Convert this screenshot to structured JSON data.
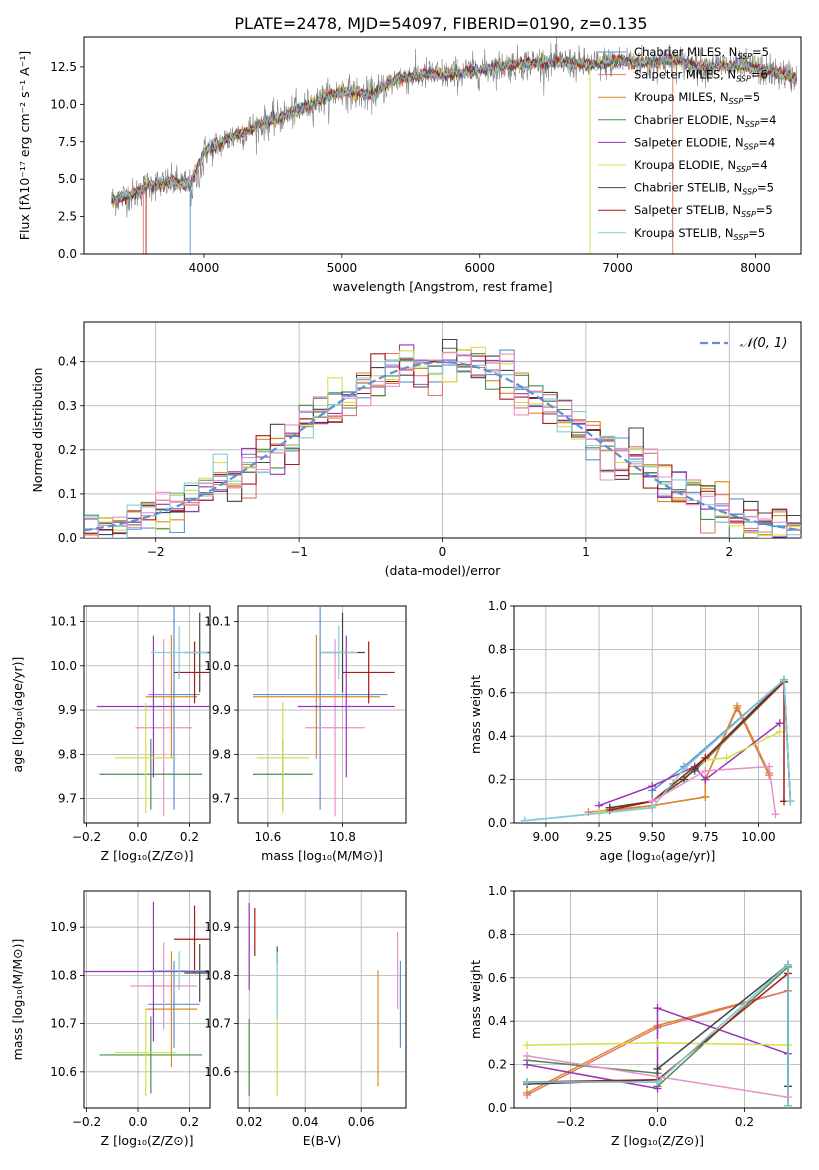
{
  "figure": {
    "title": "PLATE=2478, MJD=54097, FIBERID=0190, z=0.135"
  },
  "chart_data": [
    {
      "id": "spectrum",
      "type": "line",
      "xlabel": "wavelength [Angstrom, rest frame]",
      "ylabel": "Flux [fλ10⁻¹⁷ erg cm⁻² s⁻¹ A⁻¹]",
      "xlim": [
        3130,
        8330
      ],
      "ylim": [
        0,
        14.5
      ],
      "xticks": [
        4000,
        5000,
        6000,
        7000,
        8000
      ],
      "yticks": [
        0.0,
        2.5,
        5.0,
        7.5,
        10.0,
        12.5
      ],
      "grid": false,
      "legend_position": "upper-right",
      "x_range_data": [
        3330,
        8300
      ],
      "observed_color": "#808080",
      "observed_profile": {
        "x": [
          3330,
          3500,
          3600,
          3800,
          3900,
          4000,
          4200,
          4400,
          4600,
          4800,
          5000,
          5200,
          5400,
          5600,
          5800,
          6000,
          6200,
          6400,
          6600,
          6800,
          7000,
          7200,
          7400,
          7600,
          7800,
          8000,
          8200,
          8300
        ],
        "y": [
          3.6,
          4.0,
          4.6,
          4.8,
          4.6,
          6.8,
          7.8,
          8.6,
          9.3,
          10.1,
          10.9,
          10.6,
          11.7,
          12.0,
          12.0,
          12.3,
          12.6,
          12.8,
          12.8,
          12.6,
          12.9,
          12.8,
          13.0,
          12.5,
          12.6,
          12.4,
          12.0,
          11.8
        ]
      },
      "series": [
        {
          "name": "Chabrier MILES, N<sub>SSP</sub>=5",
          "color": "#5b8fd6"
        },
        {
          "name": "Salpeter MILES, N<sub>SSP</sub>=6",
          "color": "#e0776a"
        },
        {
          "name": "Kroupa MILES, N<sub>SSP</sub>=5",
          "color": "#d98b2b"
        },
        {
          "name": "Chabrier ELODIE, N<sub>SSP</sub>=4",
          "color": "#4e8a4e"
        },
        {
          "name": "Salpeter ELODIE, N<sub>SSP</sub>=4",
          "color": "#9a35b8"
        },
        {
          "name": "Kroupa ELODIE, N<sub>SSP</sub>=4",
          "color": "#d4e04a"
        },
        {
          "name": "Chabrier STELIB, N<sub>SSP</sub>=5",
          "color": "#444444"
        },
        {
          "name": "Salpeter STELIB, N<sub>SSP</sub>=5",
          "color": "#a51c1c"
        },
        {
          "name": "Kroupa STELIB, N<sub>SSP</sub>=5",
          "color": "#7fcfd8"
        }
      ]
    },
    {
      "id": "residuals",
      "type": "histogram",
      "xlabel": "(data-model)/error",
      "ylabel": "Normed distribution",
      "xlim": [
        -2.5,
        2.5
      ],
      "ylim": [
        0,
        0.49
      ],
      "xticks": [
        -2,
        -1,
        0,
        1,
        2
      ],
      "yticks": [
        0.0,
        0.1,
        0.2,
        0.3,
        0.4
      ],
      "grid": true,
      "legend_position": "upper-right",
      "legend": "𝒩(0, 1)",
      "gaussian_color": "#5b8fd6",
      "bin_width": 0.1
    },
    {
      "id": "age-vs-Z",
      "type": "scatter",
      "xlabel": "Z [log₁₀(Z/Z⊙)]",
      "ylabel": "age  [log₁₀(age/yr)]",
      "xlim": [
        -0.21,
        0.28
      ],
      "ylim": [
        9.645,
        10.135
      ],
      "xticks": [
        -0.2,
        0.0,
        0.2
      ],
      "xticklabels": [
        "−0.2",
        "0.0",
        "0.2"
      ],
      "yticks": [
        9.7,
        9.8,
        9.9,
        10.0,
        10.1
      ],
      "grid": true,
      "points": [
        {
          "x": 0.14,
          "y": 9.935,
          "xerr": 0.1,
          "yerr": 0.26,
          "color": "#5b8fd6"
        },
        {
          "x": 0.1,
          "y": 9.86,
          "xerr": 0.11,
          "yerr": 0.2,
          "color": "#e891c8"
        },
        {
          "x": 0.13,
          "y": 9.93,
          "xerr": 0.1,
          "yerr": 0.14,
          "color": "#d98b2b"
        },
        {
          "x": 0.05,
          "y": 9.755,
          "xerr": 0.2,
          "yerr": 0.08,
          "color": "#4e8a4e"
        },
        {
          "x": 0.06,
          "y": 9.908,
          "xerr": 0.22,
          "yerr": 0.16,
          "color": "#9a35b8"
        },
        {
          "x": 0.03,
          "y": 9.792,
          "xerr": 0.12,
          "yerr": 0.125,
          "color": "#d4e04a"
        },
        {
          "x": 0.24,
          "y": 10.03,
          "xerr": 0.06,
          "yerr": 0.09,
          "color": "#444444"
        },
        {
          "x": 0.22,
          "y": 9.985,
          "xerr": 0.08,
          "yerr": 0.07,
          "color": "#a51c1c"
        },
        {
          "x": 0.16,
          "y": 10.03,
          "xerr": 0.11,
          "yerr": 0.06,
          "color": "#7fcfd8"
        }
      ]
    },
    {
      "id": "age-vs-mass",
      "type": "scatter",
      "xlabel": "mass [log₁₀(M/M⊙)]",
      "ylabel": "",
      "xlim": [
        10.52,
        10.97
      ],
      "ylim": [
        9.645,
        10.135
      ],
      "xticks": [
        10.6,
        10.8
      ],
      "xticklabels": [
        "10.6",
        "10.8"
      ],
      "yticks": [
        9.7,
        9.8,
        9.9,
        10.0,
        10.1
      ],
      "grid": true,
      "points": [
        {
          "x": 10.74,
          "y": 9.935,
          "xerr": 0.18,
          "yerr": 0.26,
          "color": "#5b8fd6"
        },
        {
          "x": 10.78,
          "y": 9.86,
          "xerr": 0.08,
          "yerr": 0.2,
          "color": "#e891c8"
        },
        {
          "x": 10.73,
          "y": 9.93,
          "xerr": 0.17,
          "yerr": 0.14,
          "color": "#d98b2b"
        },
        {
          "x": 10.64,
          "y": 9.755,
          "xerr": 0.08,
          "yerr": 0.08,
          "color": "#4e8a4e"
        },
        {
          "x": 10.81,
          "y": 9.908,
          "xerr": 0.13,
          "yerr": 0.16,
          "color": "#9a35b8"
        },
        {
          "x": 10.64,
          "y": 9.792,
          "xerr": 0.07,
          "yerr": 0.125,
          "color": "#d4e04a"
        },
        {
          "x": 10.8,
          "y": 10.03,
          "xerr": 0.06,
          "yerr": 0.09,
          "color": "#444444"
        },
        {
          "x": 10.87,
          "y": 9.985,
          "xerr": 0.07,
          "yerr": 0.07,
          "color": "#a51c1c"
        },
        {
          "x": 10.79,
          "y": 10.03,
          "xerr": 0.05,
          "yerr": 0.06,
          "color": "#7fcfd8"
        }
      ]
    },
    {
      "id": "mass-weight-vs-age",
      "type": "line",
      "xlabel": "age  [log₁₀(age/yr)]",
      "ylabel": "mass weight",
      "xlim": [
        8.85,
        10.2
      ],
      "ylim": [
        0,
        1
      ],
      "xticks": [
        9.0,
        9.25,
        9.5,
        9.75,
        10.0
      ],
      "xticklabels": [
        "9.00",
        "9.25",
        "9.50",
        "9.75",
        "10.00"
      ],
      "yticks": [
        0.0,
        0.2,
        0.4,
        0.6,
        0.8,
        1.0
      ],
      "grid": true,
      "series": [
        {
          "color": "#5b8fd6",
          "x": [
            8.9,
            9.5,
            9.5,
            9.65,
            10.12,
            10.15
          ],
          "y": [
            0.01,
            0.07,
            0.15,
            0.26,
            0.66,
            0.1
          ]
        },
        {
          "color": "#e0776a",
          "x": [
            9.2,
            9.5,
            9.75,
            9.75,
            9.9,
            10.05
          ],
          "y": [
            0.05,
            0.08,
            0.12,
            0.2,
            0.53,
            0.22
          ]
        },
        {
          "color": "#d98b2b",
          "x": [
            9.25,
            9.5,
            9.75,
            9.75,
            9.9,
            10.05
          ],
          "y": [
            0.05,
            0.08,
            0.12,
            0.2,
            0.54,
            0.23
          ]
        },
        {
          "color": "#4e8a4e",
          "x": [
            9.3,
            9.5,
            9.6,
            9.7,
            10.12,
            10.15
          ],
          "y": [
            0.07,
            0.1,
            0.18,
            0.24,
            0.65,
            0.1
          ]
        },
        {
          "color": "#9a35b8",
          "x": [
            9.25,
            9.5,
            9.7,
            9.75,
            10.1
          ],
          "y": [
            0.08,
            0.17,
            0.26,
            0.2,
            0.46
          ]
        },
        {
          "color": "#d4e04a",
          "x": [
            9.25,
            9.5,
            9.75,
            9.85,
            10.1
          ],
          "y": [
            0.05,
            0.1,
            0.29,
            0.3,
            0.42
          ]
        },
        {
          "color": "#444444",
          "x": [
            9.3,
            9.5,
            9.65,
            9.7,
            10.12,
            10.15
          ],
          "y": [
            0.07,
            0.1,
            0.2,
            0.25,
            0.66,
            0.1
          ]
        },
        {
          "color": "#a51c1c",
          "x": [
            9.3,
            9.5,
            9.75,
            10.12,
            10.12
          ],
          "y": [
            0.06,
            0.1,
            0.3,
            0.65,
            0.1
          ]
        },
        {
          "color": "#7fcfd8",
          "x": [
            8.9,
            9.5,
            9.65,
            10.12,
            10.15
          ],
          "y": [
            0.01,
            0.07,
            0.25,
            0.66,
            0.1
          ]
        },
        {
          "color": "#e891c8",
          "x": [
            9.5,
            9.75,
            10.05,
            10.08
          ],
          "y": [
            0.1,
            0.24,
            0.26,
            0.04
          ]
        }
      ]
    },
    {
      "id": "mass-vs-Z",
      "type": "scatter",
      "xlabel": "Z [log₁₀(Z/Z⊙)]",
      "ylabel": "mass [log₁₀(M/M⊙)]",
      "xlim": [
        -0.21,
        0.28
      ],
      "ylim": [
        10.525,
        10.975
      ],
      "xticks": [
        -0.2,
        0.0,
        0.2
      ],
      "xticklabels": [
        "−0.2",
        "0.0",
        "0.2"
      ],
      "yticks": [
        10.6,
        10.7,
        10.8,
        10.9
      ],
      "grid": true,
      "points": [
        {
          "x": 0.14,
          "y": 10.74,
          "xerr": 0.1,
          "yerr": 0.09,
          "color": "#5b8fd6"
        },
        {
          "x": 0.1,
          "y": 10.778,
          "xerr": 0.13,
          "yerr": 0.09,
          "color": "#e891c8"
        },
        {
          "x": 0.13,
          "y": 10.73,
          "xerr": 0.1,
          "yerr": 0.12,
          "color": "#d98b2b"
        },
        {
          "x": 0.05,
          "y": 10.635,
          "xerr": 0.2,
          "yerr": 0.08,
          "color": "#4e8a4e"
        },
        {
          "x": 0.06,
          "y": 10.808,
          "xerr": 0.27,
          "yerr": 0.145,
          "color": "#9a35b8"
        },
        {
          "x": 0.03,
          "y": 10.64,
          "xerr": 0.12,
          "yerr": 0.09,
          "color": "#d4e04a"
        },
        {
          "x": 0.24,
          "y": 10.805,
          "xerr": 0.06,
          "yerr": 0.06,
          "color": "#444444"
        },
        {
          "x": 0.22,
          "y": 10.875,
          "xerr": 0.08,
          "yerr": 0.07,
          "color": "#a51c1c"
        },
        {
          "x": 0.16,
          "y": 10.81,
          "xerr": 0.11,
          "yerr": 0.04,
          "color": "#7fcfd8"
        }
      ]
    },
    {
      "id": "mass-vs-EBV",
      "type": "scatter",
      "xlabel": "E(B-V)",
      "ylabel": "",
      "xlim": [
        0.016,
        0.076
      ],
      "ylim": [
        10.525,
        10.975
      ],
      "xticks": [
        0.02,
        0.04,
        0.06
      ],
      "xticklabels": [
        "0.02",
        "0.04",
        "0.06"
      ],
      "yticks": [
        10.6,
        10.7,
        10.8,
        10.9
      ],
      "grid": true,
      "points": [
        {
          "x": 0.074,
          "y": 10.74,
          "xerr": 0,
          "yerr": 0.09,
          "color": "#5b8fd6"
        },
        {
          "x": 0.073,
          "y": 10.81,
          "xerr": 0,
          "yerr": 0.08,
          "color": "#e891c8"
        },
        {
          "x": 0.066,
          "y": 10.69,
          "xerr": 0,
          "yerr": 0.12,
          "color": "#d98b2b"
        },
        {
          "x": 0.02,
          "y": 10.63,
          "xerr": 0,
          "yerr": 0.08,
          "color": "#4e8a4e"
        },
        {
          "x": 0.02,
          "y": 10.86,
          "xerr": 0,
          "yerr": 0.09,
          "color": "#9a35b8"
        },
        {
          "x": 0.03,
          "y": 10.67,
          "xerr": 0,
          "yerr": 0.12,
          "color": "#d4e04a"
        },
        {
          "x": 0.03,
          "y": 10.84,
          "xerr": 0,
          "yerr": 0.02,
          "color": "#444444"
        },
        {
          "x": 0.022,
          "y": 10.89,
          "xerr": 0,
          "yerr": 0.05,
          "color": "#a51c1c"
        },
        {
          "x": 0.03,
          "y": 10.78,
          "xerr": 0,
          "yerr": 0.07,
          "color": "#7fcfd8"
        }
      ]
    },
    {
      "id": "mass-weight-vs-Z",
      "type": "line",
      "xlabel": "Z [log₁₀(Z/Z⊙)]",
      "ylabel": "mass weight",
      "xlim": [
        -0.33,
        0.33
      ],
      "ylim": [
        0,
        1
      ],
      "xticks": [
        -0.2,
        0.0,
        0.2
      ],
      "xticklabels": [
        "−0.2",
        "0.0",
        "0.2"
      ],
      "yticks": [
        0.0,
        0.2,
        0.4,
        0.6,
        0.8,
        1.0
      ],
      "grid": true,
      "series": [
        {
          "color": "#5b8fd6",
          "x": [
            -0.3,
            0.0,
            0.3,
            0.3
          ],
          "y": [
            0.12,
            0.12,
            0.66,
            0.01
          ]
        },
        {
          "color": "#d98b2b",
          "x": [
            -0.3,
            0.0,
            0.3
          ],
          "y": [
            0.07,
            0.38,
            0.54
          ]
        },
        {
          "color": "#e0776a",
          "x": [
            -0.3,
            0.0,
            0.3
          ],
          "y": [
            0.06,
            0.37,
            0.54
          ]
        },
        {
          "color": "#4e8a4e",
          "x": [
            -0.3,
            0.0,
            0.0,
            0.3,
            0.3
          ],
          "y": [
            0.22,
            0.16,
            0.1,
            0.65,
            0.01
          ]
        },
        {
          "color": "#9a35b8",
          "x": [
            -0.3,
            0.0,
            0.0,
            0.3
          ],
          "y": [
            0.2,
            0.09,
            0.46,
            0.25
          ]
        },
        {
          "color": "#d4e04a",
          "x": [
            -0.3,
            0.0,
            0.3
          ],
          "y": [
            0.29,
            0.3,
            0.29
          ]
        },
        {
          "color": "#444444",
          "x": [
            -0.3,
            0.0,
            0.0,
            0.3,
            0.3
          ],
          "y": [
            0.11,
            0.13,
            0.18,
            0.66,
            0.1
          ]
        },
        {
          "color": "#a51c1c",
          "x": [
            -0.3,
            0.0,
            0.3
          ],
          "y": [
            0.12,
            0.13,
            0.62
          ]
        },
        {
          "color": "#7fcfd8",
          "x": [
            -0.3,
            0.0,
            0.3,
            0.3
          ],
          "y": [
            0.12,
            0.12,
            0.66,
            0.01
          ]
        },
        {
          "color": "#e891c8",
          "x": [
            -0.3,
            0.3
          ],
          "y": [
            0.24,
            0.05
          ]
        }
      ]
    }
  ]
}
